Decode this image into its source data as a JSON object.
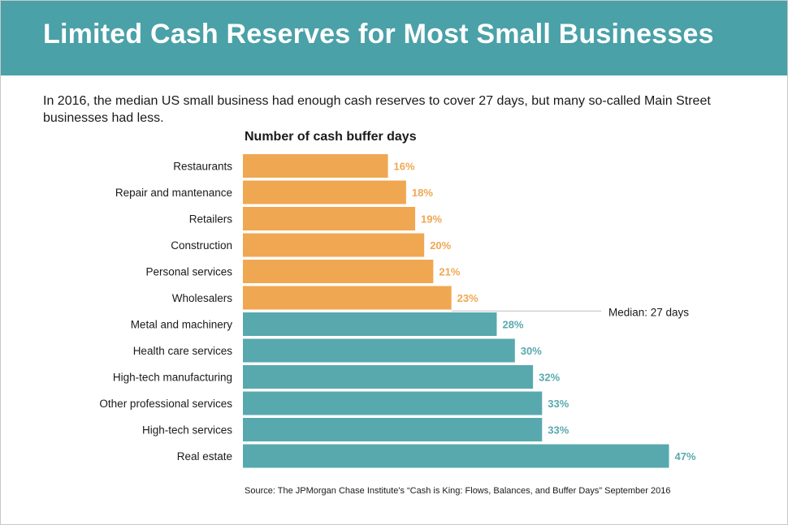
{
  "header": {
    "title": "Limited Cash Reserves for Most Small Businesses"
  },
  "subtitle": "In 2016, the median US small business had enough cash reserves to cover 27 days, but many so-called Main Street businesses had less.",
  "source": "Source: The JPMorgan Chase Institute's “Cash is King: Flows, Balances, and Buffer Days” September 2016",
  "colors": {
    "header_bg": "#4aa1a8",
    "below_median": "#f0a751",
    "above_median": "#58a9ae",
    "median_line": "#bfbfbf"
  },
  "chart_data": {
    "type": "bar",
    "orientation": "horizontal",
    "title": "Number of cash buffer days",
    "categories": [
      "Restaurants",
      "Repair and mantenance",
      "Retailers",
      "Construction",
      "Personal services",
      "Wholesalers",
      "Metal and machinery",
      "Health care services",
      "High-tech manufacturing",
      "Other professional services",
      "High-tech services",
      "Real estate"
    ],
    "values": [
      16,
      18,
      19,
      20,
      21,
      23,
      28,
      30,
      32,
      33,
      33,
      47
    ],
    "data_labels": [
      "16%",
      "18%",
      "19%",
      "20%",
      "21%",
      "23%",
      "28%",
      "30%",
      "32%",
      "33%",
      "33%",
      "47%"
    ],
    "median": 27,
    "median_label": "Median: 27 days",
    "xlim": [
      0,
      47
    ],
    "grid": false,
    "axes_shown": false
  }
}
